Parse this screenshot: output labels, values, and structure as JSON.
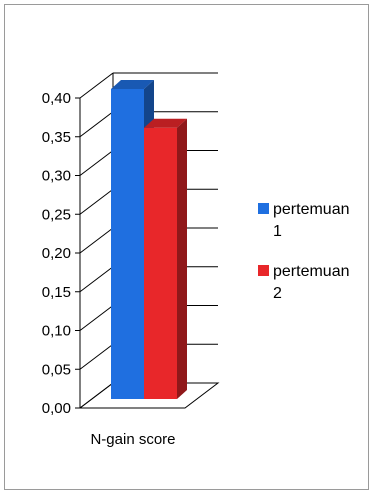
{
  "chart_data": {
    "type": "bar",
    "categories": [
      "N-gain score"
    ],
    "series": [
      {
        "name": "pertemuan 1",
        "values": [
          0.4
        ],
        "color": "#1f6fe0"
      },
      {
        "name": "pertemuan 2",
        "values": [
          0.35
        ],
        "color": "#e8272a"
      }
    ],
    "title": "",
    "xlabel": "",
    "ylabel": "",
    "ylim": [
      0,
      0.4
    ],
    "yticks": [
      0.0,
      0.05,
      0.1,
      0.15,
      0.2,
      0.25,
      0.3,
      0.35,
      0.4
    ],
    "ytick_labels": [
      "0,00",
      "0,05",
      "0,10",
      "0,15",
      "0,20",
      "0,25",
      "0,30",
      "0,35",
      "0,40"
    ],
    "grid": true,
    "legend_position": "right",
    "three_d": true,
    "legend": [
      {
        "line1": "pertemuan",
        "line2": "1"
      },
      {
        "line1": "pertemuan",
        "line2": "2"
      }
    ]
  }
}
